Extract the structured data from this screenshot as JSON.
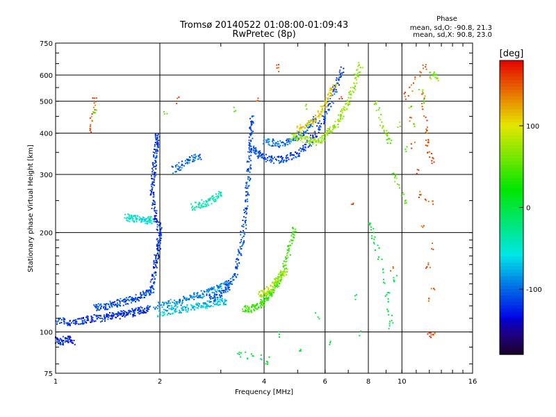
{
  "chart_data": {
    "type": "scatter",
    "title": "Tromsø 20140522 01:08:00-01:09:43",
    "subtitle": "RwPretec (8p)",
    "xlabel": "Frequency [MHz]",
    "ylabel": "Stationary phase Virtual Height [km]",
    "x_scale": "log",
    "y_scale": "log",
    "xlim": [
      1,
      16
    ],
    "ylim": [
      75,
      750
    ],
    "x_ticks": [
      1,
      2,
      4,
      6,
      8,
      10,
      16
    ],
    "x_tick_labels": [
      "1",
      "2",
      "4",
      "6",
      "8",
      "10",
      "16"
    ],
    "y_ticks": [
      75,
      100,
      200,
      300,
      400,
      500,
      600,
      750
    ],
    "y_tick_labels": [
      "75",
      "100",
      "200",
      "300",
      "400",
      "500",
      "600",
      "750"
    ],
    "grid": true,
    "legend": {
      "heading": "Phase",
      "line1": "mean, sd,O: -90.8, 21.3",
      "line2": "mean, sd,X:  90.8, 23.0",
      "placement": "top-right"
    },
    "colorbar": {
      "label": "[deg]",
      "range": [
        -180,
        180
      ],
      "ticks": [
        100,
        0,
        -100
      ],
      "tick_labels": [
        "100",
        "0",
        "-100"
      ]
    },
    "traces": [
      {
        "phase": -120,
        "points": [
          [
            1.0,
            107
          ],
          [
            1.05,
            108
          ],
          [
            1.1,
            107
          ],
          [
            1.15,
            108
          ],
          [
            1.2,
            108
          ],
          [
            1.25,
            109
          ],
          [
            1.3,
            110
          ],
          [
            1.35,
            110
          ],
          [
            1.4,
            111
          ],
          [
            1.45,
            112
          ],
          [
            1.5,
            112
          ],
          [
            1.55,
            113
          ],
          [
            1.6,
            114
          ],
          [
            1.65,
            114
          ],
          [
            1.7,
            115
          ],
          [
            1.75,
            116
          ],
          [
            1.8,
            117
          ],
          [
            1.85,
            118
          ]
        ]
      },
      {
        "phase": -110,
        "points": [
          [
            1.3,
            118
          ],
          [
            1.35,
            119
          ],
          [
            1.4,
            120
          ],
          [
            1.45,
            121
          ],
          [
            1.5,
            122
          ],
          [
            1.55,
            123
          ],
          [
            1.6,
            124
          ],
          [
            1.65,
            125
          ],
          [
            1.7,
            126
          ],
          [
            1.75,
            128
          ],
          [
            1.8,
            130
          ],
          [
            1.85,
            132
          ],
          [
            1.9,
            135
          ]
        ]
      },
      {
        "phase": -125,
        "points": [
          [
            1.0,
            95
          ],
          [
            1.03,
            93
          ],
          [
            1.06,
            94
          ],
          [
            1.09,
            96
          ],
          [
            1.12,
            93
          ]
        ]
      },
      {
        "phase": -120,
        "points": [
          [
            1.9,
            140
          ],
          [
            1.92,
            150
          ],
          [
            1.94,
            160
          ],
          [
            1.96,
            170
          ],
          [
            1.98,
            180
          ],
          [
            1.99,
            190
          ],
          [
            2.0,
            200
          ],
          [
            1.98,
            210
          ],
          [
            1.95,
            220
          ],
          [
            1.92,
            240
          ],
          [
            1.9,
            260
          ],
          [
            1.9,
            280
          ],
          [
            1.92,
            300
          ],
          [
            1.93,
            320
          ],
          [
            1.94,
            340
          ],
          [
            1.95,
            360
          ],
          [
            1.96,
            380
          ],
          [
            1.97,
            395
          ]
        ]
      },
      {
        "phase": -90,
        "points": [
          [
            1.95,
            120
          ],
          [
            2.05,
            121
          ],
          [
            2.15,
            122
          ],
          [
            2.25,
            123
          ],
          [
            2.35,
            125
          ],
          [
            2.45,
            127
          ],
          [
            2.55,
            129
          ],
          [
            2.65,
            130
          ],
          [
            2.75,
            132
          ],
          [
            2.85,
            134
          ],
          [
            2.95,
            136
          ],
          [
            3.05,
            138
          ],
          [
            3.15,
            140
          ]
        ]
      },
      {
        "phase": -70,
        "points": [
          [
            2.0,
            114
          ],
          [
            2.1,
            115
          ],
          [
            2.2,
            116
          ],
          [
            2.3,
            117
          ],
          [
            2.4,
            118
          ],
          [
            2.5,
            119
          ],
          [
            2.6,
            120
          ],
          [
            2.7,
            121
          ],
          [
            2.8,
            122
          ],
          [
            2.9,
            123
          ],
          [
            3.0,
            124
          ],
          [
            3.1,
            124
          ]
        ]
      },
      {
        "phase": -110,
        "points": [
          [
            2.8,
            126
          ],
          [
            2.9,
            128
          ],
          [
            3.0,
            131
          ],
          [
            3.1,
            135
          ],
          [
            3.2,
            140
          ],
          [
            3.3,
            150
          ],
          [
            3.35,
            160
          ],
          [
            3.4,
            175
          ],
          [
            3.45,
            190
          ],
          [
            3.5,
            210
          ],
          [
            3.55,
            235
          ],
          [
            3.58,
            260
          ],
          [
            3.6,
            290
          ],
          [
            3.62,
            320
          ],
          [
            3.64,
            350
          ],
          [
            3.66,
            380
          ],
          [
            3.68,
            420
          ],
          [
            3.7,
            440
          ]
        ]
      },
      {
        "phase": -115,
        "points": [
          [
            3.7,
            360
          ],
          [
            3.8,
            350
          ],
          [
            3.9,
            343
          ],
          [
            4.0,
            338
          ],
          [
            4.2,
            333
          ],
          [
            4.4,
            332
          ],
          [
            4.6,
            335
          ],
          [
            4.8,
            340
          ],
          [
            5.0,
            348
          ],
          [
            5.2,
            360
          ],
          [
            5.4,
            375
          ],
          [
            5.6,
            395
          ],
          [
            5.8,
            420
          ],
          [
            6.0,
            450
          ],
          [
            6.2,
            490
          ],
          [
            6.4,
            540
          ],
          [
            6.55,
            580
          ],
          [
            6.7,
            620
          ]
        ]
      },
      {
        "phase": -100,
        "points": [
          [
            4.0,
            380
          ],
          [
            4.2,
            375
          ],
          [
            4.4,
            372
          ],
          [
            4.6,
            375
          ],
          [
            4.8,
            380
          ],
          [
            5.0,
            390
          ],
          [
            5.2,
            400
          ],
          [
            5.4,
            415
          ],
          [
            5.6,
            440
          ]
        ]
      },
      {
        "phase": 70,
        "points": [
          [
            4.8,
            390
          ],
          [
            5.0,
            388
          ],
          [
            5.2,
            385
          ],
          [
            5.4,
            380
          ],
          [
            5.6,
            375
          ],
          [
            5.8,
            380
          ],
          [
            6.0,
            390
          ],
          [
            6.2,
            405
          ],
          [
            6.4,
            420
          ],
          [
            6.6,
            445
          ],
          [
            6.8,
            470
          ],
          [
            7.0,
            500
          ],
          [
            7.2,
            540
          ],
          [
            7.4,
            590
          ],
          [
            7.6,
            640
          ]
        ]
      },
      {
        "phase": 110,
        "points": [
          [
            5.0,
            410
          ],
          [
            5.2,
            415
          ],
          [
            5.4,
            425
          ],
          [
            5.6,
            440
          ],
          [
            5.8,
            460
          ],
          [
            6.0,
            490
          ],
          [
            6.2,
            520
          ],
          [
            6.4,
            560
          ]
        ]
      },
      {
        "phase": 40,
        "points": [
          [
            3.5,
            118
          ],
          [
            3.6,
            117
          ],
          [
            3.7,
            118
          ],
          [
            3.8,
            119
          ],
          [
            3.9,
            121
          ],
          [
            4.0,
            124
          ],
          [
            4.1,
            127
          ],
          [
            4.2,
            131
          ],
          [
            4.3,
            136
          ],
          [
            4.4,
            142
          ],
          [
            4.5,
            150
          ],
          [
            4.6,
            160
          ],
          [
            4.7,
            175
          ],
          [
            4.8,
            190
          ],
          [
            4.9,
            205
          ]
        ]
      },
      {
        "phase": 80,
        "points": [
          [
            3.9,
            130
          ],
          [
            4.0,
            131
          ],
          [
            4.1,
            133
          ],
          [
            4.2,
            136
          ],
          [
            4.3,
            140
          ],
          [
            4.4,
            145
          ],
          [
            4.5,
            150
          ],
          [
            4.6,
            152
          ]
        ]
      },
      {
        "phase": -50,
        "points": [
          [
            1.6,
            222
          ],
          [
            1.65,
            221
          ],
          [
            1.7,
            220
          ],
          [
            1.75,
            219
          ],
          [
            1.8,
            218
          ],
          [
            1.85,
            218
          ],
          [
            1.9,
            219
          ]
        ]
      },
      {
        "phase": -40,
        "points": [
          [
            2.5,
            240
          ],
          [
            2.6,
            243
          ],
          [
            2.7,
            246
          ],
          [
            2.8,
            250
          ],
          [
            2.9,
            255
          ],
          [
            3.0,
            260
          ]
        ]
      },
      {
        "phase": -100,
        "points": [
          [
            2.2,
            310
          ],
          [
            2.3,
            320
          ],
          [
            2.4,
            330
          ],
          [
            2.5,
            335
          ],
          [
            2.6,
            340
          ]
        ]
      },
      {
        "phase": 150,
        "points": [
          [
            1.25,
            410
          ],
          [
            1.3,
            500
          ],
          [
            11.5,
            520
          ],
          [
            11.8,
            380
          ],
          [
            12.2,
            330
          ],
          [
            12.3,
            100
          ],
          [
            11.3,
            260
          ],
          [
            10.3,
            520
          ],
          [
            11.6,
            640
          ],
          [
            12.0,
            98
          ],
          [
            4.4,
            630
          ]
        ]
      },
      {
        "phase": 60,
        "points": [
          [
            1.3,
            460
          ],
          [
            8.4,
            490
          ],
          [
            8.9,
            410
          ],
          [
            9.2,
            380
          ],
          [
            12.2,
            600
          ],
          [
            12.6,
            590
          ],
          [
            9.5,
            300
          ],
          [
            10.2,
            250
          ]
        ]
      },
      {
        "phase": 0,
        "points": [
          [
            8.1,
            210
          ],
          [
            8.5,
            180
          ],
          [
            9.1,
            130
          ],
          [
            9.3,
            105
          ],
          [
            4.1,
            82
          ],
          [
            3.4,
            86
          ],
          [
            9.6,
            145
          ]
        ]
      }
    ],
    "series": [
      {
        "name": "O",
        "values": []
      },
      {
        "name": "X",
        "values": []
      }
    ]
  }
}
